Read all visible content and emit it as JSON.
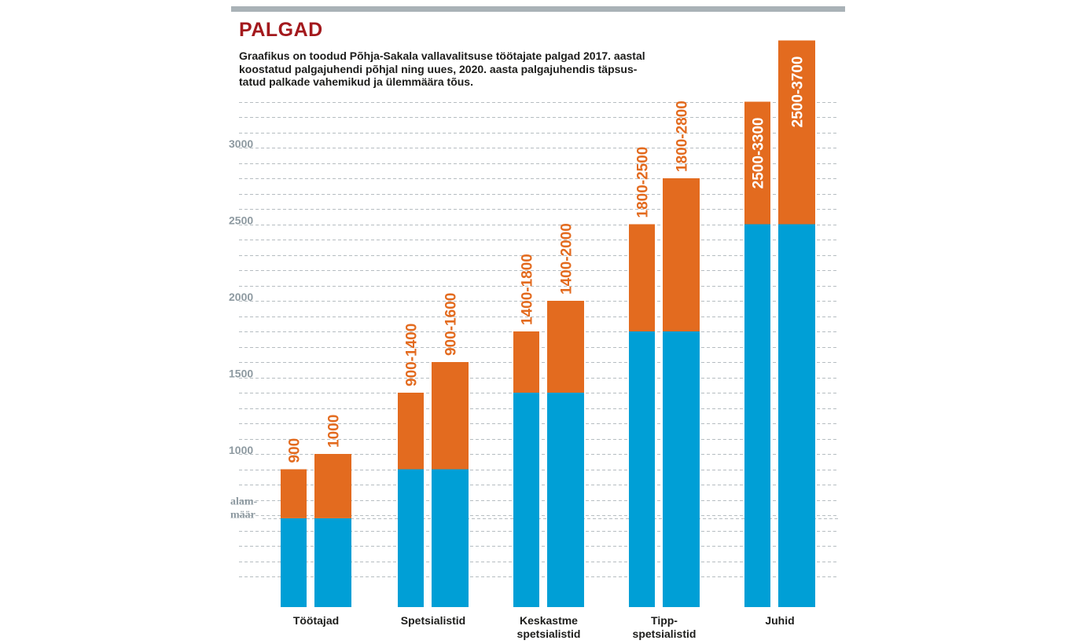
{
  "header": {
    "title": "PALGAD",
    "description_lines": [
      "Graafikus on toodud Põhja-Sakala vallavalitsuse töötajate palgad 2017. aastal",
      "koostatud palgajuhendi põhjal ning uues, 2020. aasta palgajuhendis täpsus-",
      "tatud palkade vahemikud ja ülemmäära tõus."
    ]
  },
  "colors": {
    "base": "#009fd6",
    "range": "#e36b1f",
    "range_label_outside": "#e36b1f",
    "range_label_inside": "#ffffff",
    "title": "#a3191d"
  },
  "chart_data": {
    "type": "bar",
    "stacked": true,
    "y_ticks": [
      1000,
      1500,
      2000,
      2500,
      3000
    ],
    "y_tick_labels": [
      "1000",
      "1500",
      "2000",
      "2500",
      "3000"
    ],
    "ylim": [
      0,
      3700
    ],
    "grid": true,
    "baseline_marker": {
      "value": 580,
      "label_lines": [
        "alam-",
        "määr"
      ]
    },
    "categories": [
      {
        "label_lines": [
          "Töötajad"
        ],
        "bars": [
          {
            "low": 580,
            "high": 900,
            "label": "900"
          },
          {
            "low": 580,
            "high": 1000,
            "label": "1000"
          }
        ]
      },
      {
        "label_lines": [
          "Spetsialistid"
        ],
        "bars": [
          {
            "low": 900,
            "high": 1400,
            "label": "900-1400"
          },
          {
            "low": 900,
            "high": 1600,
            "label": "900-1600"
          }
        ]
      },
      {
        "label_lines": [
          "Keskastme",
          "spetsialistid"
        ],
        "bars": [
          {
            "low": 1400,
            "high": 1800,
            "label": "1400-1800"
          },
          {
            "low": 1400,
            "high": 2000,
            "label": "1400-2000"
          }
        ]
      },
      {
        "label_lines": [
          "Tipp-",
          "spetsialistid"
        ],
        "bars": [
          {
            "low": 1800,
            "high": 2500,
            "label": "1800-2500"
          },
          {
            "low": 1800,
            "high": 2800,
            "label": "1800-2800"
          }
        ]
      },
      {
        "label_lines": [
          "Juhid"
        ],
        "bars": [
          {
            "low": 2500,
            "high": 3300,
            "label": "2500-3300",
            "label_inside": true
          },
          {
            "low": 2500,
            "high": 3700,
            "label": "2500-3700",
            "label_inside": true
          }
        ]
      }
    ]
  }
}
